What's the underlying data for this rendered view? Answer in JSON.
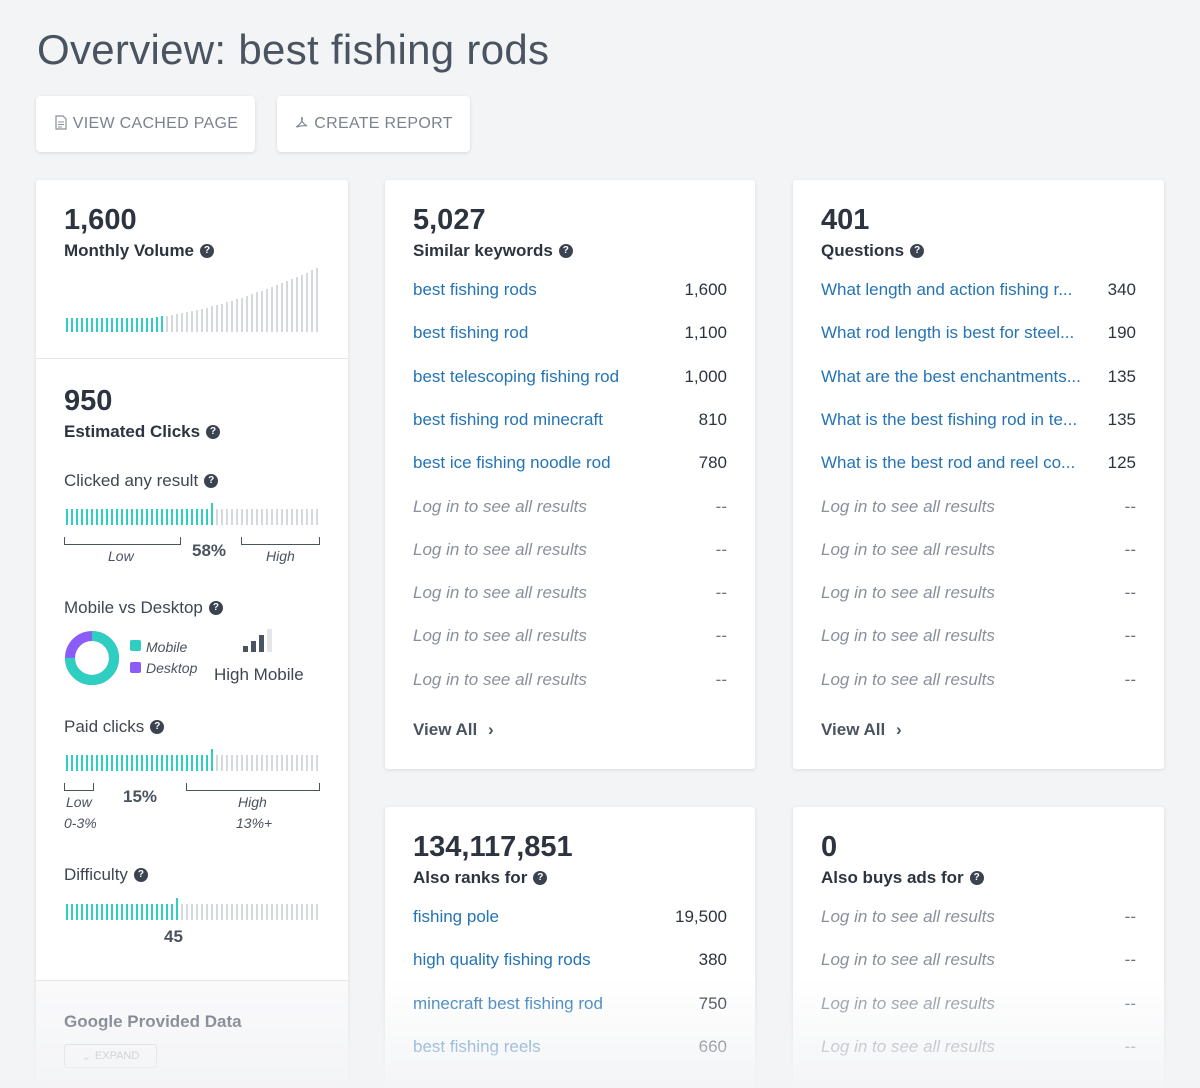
{
  "page": {
    "title": "Overview: best fishing rods"
  },
  "toolbar": {
    "view_cached_label": "VIEW CACHED PAGE",
    "create_report_label": "CREATE REPORT"
  },
  "left": {
    "volume_value": "1,600",
    "volume_label": "Monthly Volume",
    "clicks_value": "950",
    "clicks_label": "Estimated Clicks",
    "clicked_any_label": "Clicked any result",
    "clicked_any_pct": "58%",
    "clicked_any_fraction": 0.58,
    "low_label": "Low",
    "high_label": "High",
    "mobile_desktop_label": "Mobile vs Desktop",
    "mobile_legend": "Mobile",
    "desktop_legend": "Desktop",
    "high_mobile_label": "High Mobile",
    "mobile_fraction": 0.75,
    "paid_clicks_label": "Paid clicks",
    "paid_clicks_pct": "15%",
    "paid_low_range": "0-3%",
    "paid_high_range": "13%+",
    "paid_fraction": 0.58,
    "difficulty_label": "Difficulty",
    "difficulty_value": "45",
    "difficulty_fraction": 0.45,
    "google_data_label": "Google Provided Data",
    "expand_label": "EXPAND"
  },
  "similar": {
    "value": "5,027",
    "label": "Similar keywords",
    "rows": [
      {
        "k": "best fishing rods",
        "v": "1,600"
      },
      {
        "k": "best fishing rod",
        "v": "1,100"
      },
      {
        "k": "best telescoping fishing rod",
        "v": "1,000"
      },
      {
        "k": "best fishing rod minecraft",
        "v": "810"
      },
      {
        "k": "best ice fishing noodle rod",
        "v": "780"
      }
    ],
    "locked_text": "Log in to see all results",
    "locked_value": "--",
    "view_all": "View All"
  },
  "questions": {
    "value": "401",
    "label": "Questions",
    "rows": [
      {
        "k": "What length and action fishing r...",
        "v": "340"
      },
      {
        "k": "What rod length is best for steel...",
        "v": "190"
      },
      {
        "k": "What are the best enchantments...",
        "v": "135"
      },
      {
        "k": "What is the best fishing rod in te...",
        "v": "135"
      },
      {
        "k": "What is the best rod and reel co...",
        "v": "125"
      }
    ],
    "locked_text": "Log in to see all results",
    "locked_value": "--",
    "view_all": "View All"
  },
  "also_ranks": {
    "value": "134,117,851",
    "label": "Also ranks for",
    "rows": [
      {
        "k": "fishing pole",
        "v": "19,500"
      },
      {
        "k": "high quality fishing rods",
        "v": "380"
      },
      {
        "k": "minecraft best fishing rod",
        "v": "750"
      },
      {
        "k": "best fishing reels",
        "v": "660"
      }
    ]
  },
  "also_buys": {
    "value": "0",
    "label": "Also buys ads for",
    "locked_text": "Log in to see all results",
    "locked_value": "--"
  },
  "colors": {
    "teal": "#2ecfc0",
    "purple": "#8b5cf6",
    "link": "#2474b5",
    "grey_bar": "#d5d8dc"
  }
}
